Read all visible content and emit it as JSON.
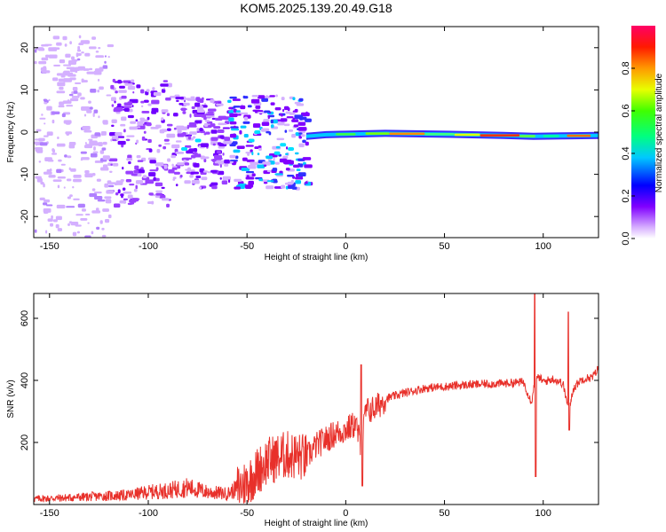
{
  "title": "KOM5.2025.139.20.49.G18",
  "chart_data": [
    {
      "type": "heatmap",
      "xlabel": "Height of straight line (km)",
      "ylabel": "Frequency (Hz)",
      "xlim": [
        -158,
        128
      ],
      "ylim": [
        -25,
        25
      ],
      "xticks": [
        -150,
        -100,
        -50,
        0,
        50,
        100
      ],
      "yticks": [
        -20,
        -10,
        0,
        10,
        20
      ],
      "colorbar": {
        "label": "Normalized spectral amplitude",
        "range": [
          0,
          1
        ],
        "ticks": [
          "0.0",
          "0.2",
          "0.4",
          "0.6",
          "0.8"
        ]
      },
      "ridge": [
        {
          "x": -20,
          "y": -1.0
        },
        {
          "x": -10,
          "y": -0.6
        },
        {
          "x": 0,
          "y": -0.5
        },
        {
          "x": 20,
          "y": -0.3
        },
        {
          "x": 50,
          "y": -0.5
        },
        {
          "x": 80,
          "y": -0.8
        },
        {
          "x": 95,
          "y": -1.0
        },
        {
          "x": 110,
          "y": -0.9
        },
        {
          "x": 128,
          "y": -0.8
        }
      ]
    },
    {
      "type": "line",
      "xlabel": "Height of straight line (km)",
      "ylabel": "SNR (v/v)",
      "xlim": [
        -158,
        128
      ],
      "ylim": [
        0,
        680
      ],
      "xticks": [
        -150,
        -100,
        -50,
        0,
        50,
        100
      ],
      "yticks": [
        200,
        400,
        600
      ],
      "color": "#e8302a",
      "series": [
        {
          "x": [
            -158,
            -150,
            -140,
            -130,
            -120,
            -110,
            -100,
            -90,
            -80,
            -70,
            -60,
            -50,
            -40,
            -30,
            -20,
            -15,
            -10,
            -5,
            0,
            5,
            8,
            10,
            15,
            20,
            30,
            40,
            50,
            60,
            70,
            80,
            90,
            94,
            96,
            98,
            100,
            105,
            110,
            113,
            115,
            118,
            120,
            125,
            128
          ],
          "y": [
            18,
            20,
            22,
            25,
            28,
            30,
            40,
            45,
            55,
            40,
            35,
            70,
            140,
            160,
            150,
            190,
            210,
            230,
            240,
            260,
            180,
            300,
            310,
            340,
            360,
            375,
            380,
            385,
            388,
            390,
            395,
            330,
            400,
            410,
            395,
            405,
            390,
            300,
            370,
            395,
            405,
            410,
            440
          ]
        }
      ]
    }
  ]
}
